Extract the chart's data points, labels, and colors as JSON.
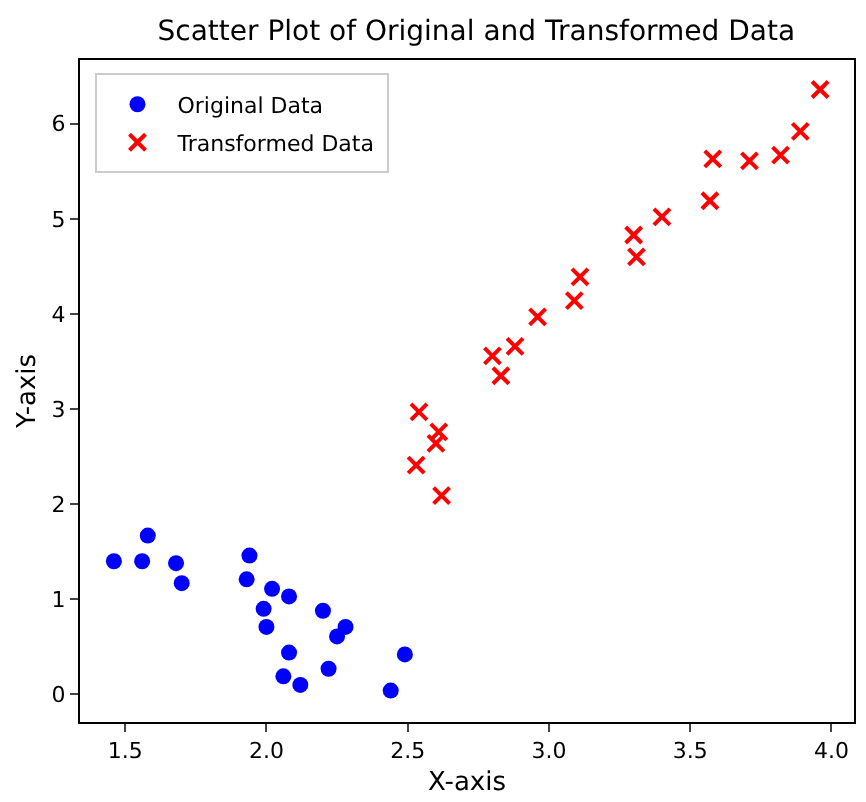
{
  "chart_data": {
    "type": "scatter",
    "title": "Scatter Plot of Original and Transformed Data",
    "xlabel": "X-axis",
    "ylabel": "Y-axis",
    "xlim": [
      1.34,
      4.08
    ],
    "ylim": [
      -0.29,
      6.67
    ],
    "xticks": [
      1.5,
      {
        "value": 2,
        "label": "2.0"
      },
      2.5,
      {
        "value": 3,
        "label": "3.0"
      },
      3.5,
      {
        "value": 4,
        "label": "4.0"
      }
    ],
    "yticks": [
      0,
      1,
      2,
      3,
      4,
      5,
      6
    ],
    "legend": "top left",
    "series": [
      {
        "name": "Original Data",
        "color": "#0000ff",
        "marker": "circle",
        "x": [
          1.46,
          1.58,
          1.56,
          1.68,
          1.7,
          1.94,
          1.93,
          2.02,
          2.08,
          1.99,
          2.0,
          2.2,
          2.28,
          2.25,
          2.08,
          2.06,
          2.12,
          2.22,
          2.49,
          2.44
        ],
        "values": [
          1.4,
          1.67,
          1.4,
          1.38,
          1.17,
          1.46,
          1.21,
          1.11,
          1.03,
          0.9,
          0.71,
          0.88,
          0.71,
          0.61,
          0.44,
          0.19,
          0.1,
          0.27,
          0.42,
          0.04
        ]
      },
      {
        "name": "Transformed Data",
        "color": "#ff0000",
        "marker": "cross",
        "x": [
          2.53,
          2.54,
          2.61,
          2.6,
          2.62,
          2.8,
          2.83,
          2.88,
          2.96,
          3.09,
          3.11,
          3.3,
          3.31,
          3.4,
          3.57,
          3.58,
          3.71,
          3.82,
          3.89,
          3.96
        ],
        "values": [
          2.41,
          2.97,
          2.76,
          2.64,
          2.09,
          3.56,
          3.35,
          3.66,
          3.97,
          4.14,
          4.39,
          4.83,
          4.6,
          5.02,
          5.19,
          5.63,
          5.61,
          5.67,
          5.92,
          6.36
        ]
      }
    ]
  }
}
